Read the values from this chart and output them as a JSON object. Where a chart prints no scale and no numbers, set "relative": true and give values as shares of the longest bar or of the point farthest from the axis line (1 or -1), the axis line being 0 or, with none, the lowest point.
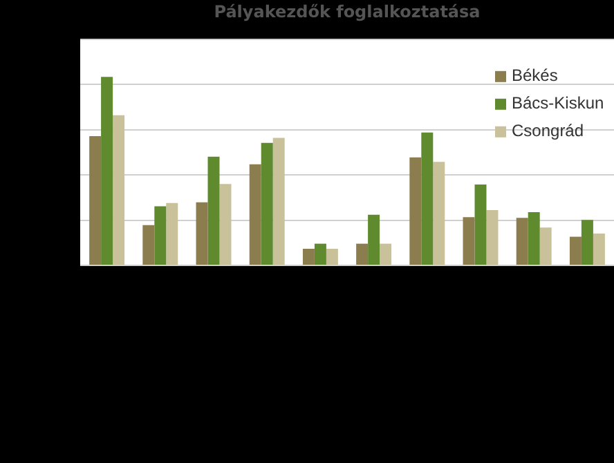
{
  "chart_data": {
    "type": "bar",
    "title": "Pályakezdők foglalkoztatása",
    "relative": true,
    "grid": "y",
    "legend": "top right",
    "categories": [
      null,
      null,
      null,
      null,
      null,
      null,
      null,
      null,
      null,
      null
    ],
    "series": [
      {
        "name": "Békés",
        "color": "#8c7d4e",
        "values": [
          0.686,
          0.214,
          0.335,
          0.536,
          0.088,
          0.115,
          0.573,
          0.256,
          0.252,
          0.152
        ]
      },
      {
        "name": "Bács-Kiskun",
        "color": "#5f8a2e",
        "values": [
          1,
          0.314,
          0.577,
          0.65,
          0.115,
          0.269,
          0.705,
          0.429,
          0.282,
          0.241
        ]
      },
      {
        "name": "Csongrád",
        "color": "#c9c19a",
        "values": [
          0.797,
          0.331,
          0.432,
          0.677,
          0.088,
          0.115,
          0.549,
          0.293,
          0.201,
          0.169
        ]
      }
    ]
  }
}
